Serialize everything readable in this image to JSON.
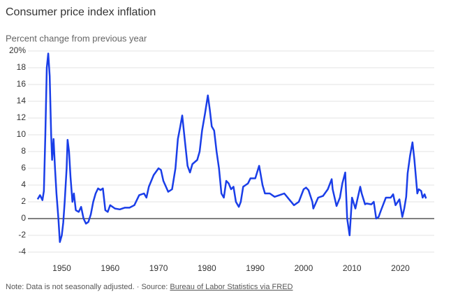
{
  "chart_data": {
    "type": "line",
    "title": "Consumer price index inflation",
    "subtitle": "Percent change from previous year",
    "note": "Note: Data is not seasonally adjusted. · Source:",
    "source_link": "Bureau of Labor Statistics via FRED",
    "xlim": [
      1943,
      2027
    ],
    "xticks": [
      1950,
      1960,
      1970,
      1980,
      1990,
      2000,
      2010,
      2020
    ],
    "ylim": [
      -4,
      20
    ],
    "yticks": [
      {
        "value": 20,
        "label": "20%"
      },
      18,
      16,
      14,
      12,
      10,
      8,
      6,
      4,
      2,
      0,
      -2,
      -4
    ],
    "grid": true,
    "color": "#1a3ee8",
    "x": [
      1945.0,
      1945.5,
      1946.0,
      1946.3,
      1946.6,
      1946.9,
      1947.2,
      1947.5,
      1947.8,
      1948.0,
      1948.3,
      1948.6,
      1948.9,
      1949.3,
      1949.6,
      1950.0,
      1950.3,
      1950.6,
      1951.0,
      1951.2,
      1951.5,
      1951.8,
      1952.2,
      1952.5,
      1952.9,
      1953.5,
      1954.0,
      1954.5,
      1955.0,
      1955.5,
      1956.0,
      1956.5,
      1957.0,
      1957.5,
      1958.0,
      1958.5,
      1959.0,
      1959.5,
      1960.0,
      1961,
      1962,
      1963,
      1964,
      1965,
      1966,
      1967,
      1967.5,
      1968,
      1969,
      1970,
      1970.5,
      1971,
      1972,
      1972.8,
      1973.5,
      1974,
      1974.5,
      1974.9,
      1975.5,
      1976,
      1976.5,
      1977,
      1978,
      1978.5,
      1979,
      1979.6,
      1980.2,
      1980.6,
      1981,
      1981.5,
      1982,
      1982.5,
      1983,
      1983.5,
      1984,
      1984.5,
      1985,
      1985.5,
      1986,
      1986.6,
      1987,
      1987.5,
      1988,
      1988.5,
      1989,
      1990,
      1990.8,
      1991.5,
      1992,
      1993,
      1994,
      1995,
      1996,
      1997,
      1998,
      1999,
      2000,
      2000.5,
      2001,
      2001.8,
      2002,
      2003,
      2004,
      2005,
      2005.8,
      2006,
      2006.8,
      2007.5,
      2008,
      2008.6,
      2009,
      2009.5,
      2010,
      2010.7,
      2011,
      2011.7,
      2012,
      2012.7,
      2013,
      2014,
      2014.5,
      2015,
      2015.5,
      2016,
      2017,
      2018,
      2018.5,
      2019,
      2019.8,
      2020.4,
      2020.8,
      2021.2,
      2021.5,
      2022.0,
      2022.5,
      2022.9,
      2023.5,
      2023.8,
      2024.3,
      2024.6,
      2025,
      2025.3
    ],
    "values": [
      2.3,
      2.8,
      2.2,
      3.3,
      10,
      18,
      19.7,
      17,
      10,
      7,
      9.5,
      6,
      3,
      0,
      -2.8,
      -2,
      -0.5,
      2,
      6,
      9.4,
      8,
      5,
      2,
      3,
      1,
      0.8,
      1.4,
      0,
      -0.6,
      -0.4,
      0.5,
      2,
      3,
      3.6,
      3.4,
      3.6,
      1,
      0.8,
      1.6,
      1.2,
      1.1,
      1.3,
      1.3,
      1.6,
      2.8,
      3,
      2.5,
      3.8,
      5.2,
      6,
      5.8,
      4.5,
      3.2,
      3.5,
      6,
      9.5,
      11,
      12.3,
      9,
      6.3,
      5.5,
      6.5,
      7,
      8,
      10.5,
      12.5,
      14.7,
      13,
      11,
      10.5,
      8,
      6,
      3,
      2.5,
      4.5,
      4.2,
      3.5,
      3.8,
      2,
      1.4,
      2,
      3.8,
      4,
      4.2,
      4.8,
      4.8,
      6.3,
      4,
      3,
      3,
      2.6,
      2.8,
      3,
      2.3,
      1.6,
      2,
      3.5,
      3.7,
      3.4,
      2.0,
      1.2,
      2.5,
      2.7,
      3.5,
      4.7,
      3.5,
      1.5,
      2.5,
      4.2,
      5.5,
      0,
      -2,
      2.5,
      1.2,
      2,
      3.8,
      3,
      1.7,
      1.8,
      1.7,
      2,
      0,
      0.2,
      1,
      2.5,
      2.5,
      2.9,
      1.6,
      2.3,
      0.2,
      1.2,
      2.6,
      5.4,
      7.5,
      9.1,
      7,
      3.0,
      3.5,
      3.3,
      2.5,
      2.9,
      2.4
    ]
  }
}
